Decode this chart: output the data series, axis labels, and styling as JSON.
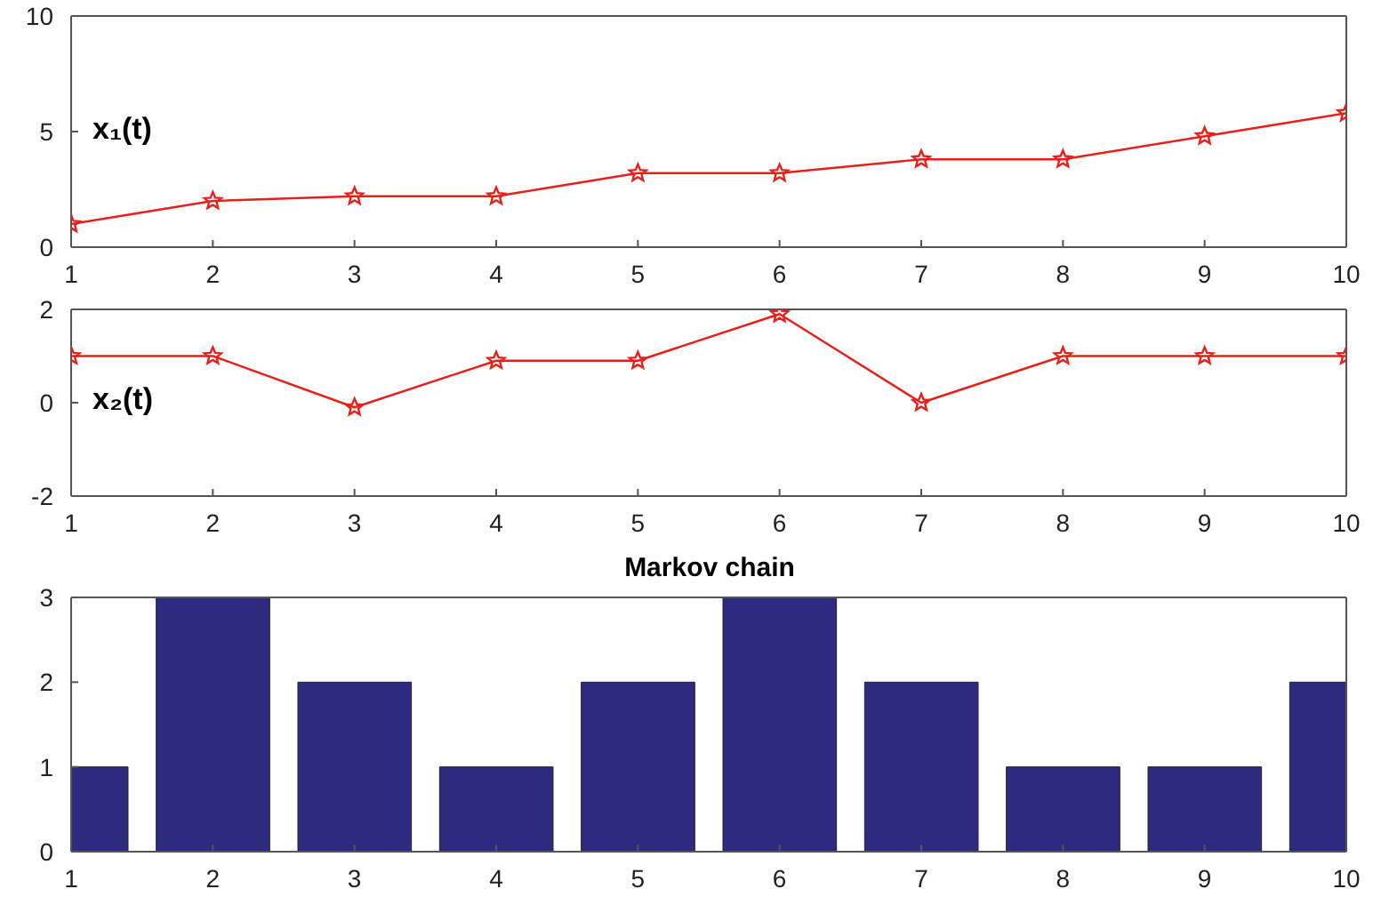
{
  "chart_data": [
    {
      "type": "line",
      "ylabel": "x₁(t)",
      "x": [
        1,
        2,
        3,
        4,
        5,
        6,
        7,
        8,
        9,
        10
      ],
      "xlim": [
        1,
        10
      ],
      "xticks": [
        1,
        2,
        3,
        4,
        5,
        6,
        7,
        8,
        9,
        10
      ],
      "ylim": [
        0,
        10
      ],
      "yticks": [
        0,
        5,
        10
      ],
      "marker": "star",
      "grid": false,
      "legend": false,
      "series": [
        {
          "color": "#e8201a",
          "values": [
            1,
            2,
            2.2,
            2.2,
            3.2,
            3.2,
            3.8,
            3.8,
            4.8,
            5.8
          ]
        }
      ]
    },
    {
      "type": "line",
      "ylabel": "x₂(t)",
      "x": [
        1,
        2,
        3,
        4,
        5,
        6,
        7,
        8,
        9,
        10
      ],
      "xlim": [
        1,
        10
      ],
      "xticks": [
        1,
        2,
        3,
        4,
        5,
        6,
        7,
        8,
        9,
        10
      ],
      "ylim": [
        -2,
        2
      ],
      "yticks": [
        -2,
        0,
        2
      ],
      "marker": "star",
      "grid": false,
      "legend": false,
      "series": [
        {
          "color": "#e8201a",
          "values": [
            1,
            1,
            -0.1,
            0.9,
            0.9,
            1.9,
            0,
            1,
            1,
            1
          ]
        }
      ]
    },
    {
      "type": "bar",
      "title": "Markov chain",
      "x": [
        1,
        2,
        3,
        4,
        5,
        6,
        7,
        8,
        9,
        10
      ],
      "xlim": [
        1,
        10
      ],
      "xticks": [
        1,
        2,
        3,
        4,
        5,
        6,
        7,
        8,
        9,
        10
      ],
      "ylim": [
        0,
        3
      ],
      "yticks": [
        0,
        1,
        2,
        3
      ],
      "grid": false,
      "legend": false,
      "series": [
        {
          "color": "#2e2a80",
          "values": [
            1,
            3,
            2,
            1,
            2,
            3,
            2,
            1,
            1,
            2
          ]
        }
      ]
    }
  ]
}
